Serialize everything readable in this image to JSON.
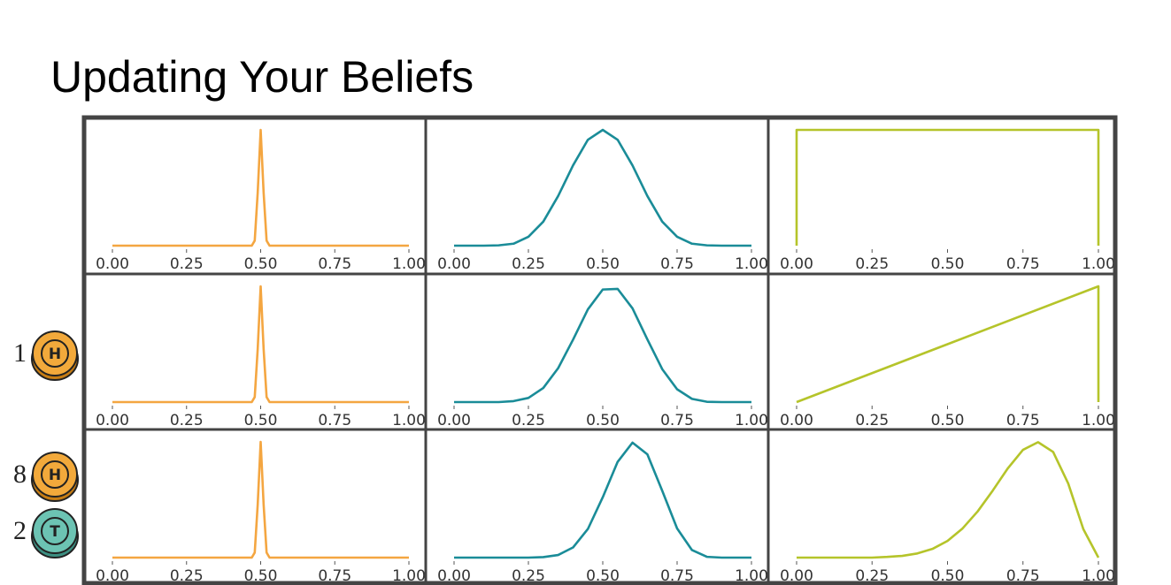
{
  "title": "Updating Your Beliefs",
  "coins": [
    {
      "count": 1,
      "face": "H"
    },
    {
      "count": 8,
      "face": "H"
    },
    {
      "count": 2,
      "face": "T"
    }
  ],
  "chart_data": [
    {
      "type": "line",
      "color": "#f4a641",
      "x": [
        0,
        0.25,
        0.45,
        0.47,
        0.48,
        0.49,
        0.5,
        0.51,
        0.52,
        0.53,
        0.55,
        0.75,
        1
      ],
      "values": [
        0,
        0,
        0,
        0,
        2.2,
        23.1,
        50.5,
        23.1,
        2.2,
        0,
        0,
        0,
        0
      ],
      "xlim": [
        0,
        1
      ],
      "ylim": [
        0,
        50.5
      ],
      "xticks": [
        {
          "value": 0,
          "label": "0.00"
        },
        {
          "value": 0.25,
          "label": "0.25"
        },
        {
          "value": 0.5,
          "label": "0.50"
        },
        {
          "value": 0.75,
          "label": "0.75"
        },
        {
          "value": 1,
          "label": "1.00"
        }
      ]
    },
    {
      "type": "line",
      "color": "#1a8c98",
      "x": [
        0,
        0.05,
        0.1,
        0.15,
        0.2,
        0.25,
        0.3,
        0.35,
        0.4,
        0.45,
        0.5,
        0.55,
        0.6,
        0.65,
        0.7,
        0.75,
        0.8,
        0.85,
        0.9,
        0.95,
        1
      ],
      "values": [
        0,
        0,
        0,
        0.01,
        0.06,
        0.27,
        0.73,
        1.51,
        2.44,
        3.22,
        3.52,
        3.22,
        2.44,
        1.51,
        0.73,
        0.27,
        0.06,
        0.01,
        0,
        0,
        0
      ],
      "xlim": [
        0,
        1
      ],
      "ylim": [
        0,
        3.52
      ],
      "xticks": [
        {
          "value": 0,
          "label": "0.00"
        },
        {
          "value": 0.25,
          "label": "0.25"
        },
        {
          "value": 0.5,
          "label": "0.50"
        },
        {
          "value": 0.75,
          "label": "0.75"
        },
        {
          "value": 1,
          "label": "1.00"
        }
      ]
    },
    {
      "type": "line",
      "color": "#b5c42a",
      "x": [
        0,
        0,
        1,
        1
      ],
      "values": [
        0,
        1,
        1,
        0
      ],
      "xlim": [
        0,
        1
      ],
      "ylim": [
        0,
        1
      ],
      "xticks": [
        {
          "value": 0,
          "label": "0.00"
        },
        {
          "value": 0.25,
          "label": "0.25"
        },
        {
          "value": 0.5,
          "label": "0.50"
        },
        {
          "value": 0.75,
          "label": "0.75"
        },
        {
          "value": 1,
          "label": "1.00"
        }
      ]
    },
    {
      "type": "line",
      "color": "#f4a641",
      "x": [
        0,
        0.25,
        0.45,
        0.47,
        0.48,
        0.49,
        0.5,
        0.51,
        0.52,
        0.53,
        0.55,
        0.75,
        1
      ],
      "values": [
        0,
        0,
        0,
        0,
        2.2,
        23.1,
        50.5,
        23.1,
        2.2,
        0,
        0,
        0,
        0
      ],
      "xlim": [
        0,
        1
      ],
      "ylim": [
        0,
        50.5
      ],
      "xticks": [
        {
          "value": 0,
          "label": "0.00"
        },
        {
          "value": 0.25,
          "label": "0.25"
        },
        {
          "value": 0.5,
          "label": "0.50"
        },
        {
          "value": 0.75,
          "label": "0.75"
        },
        {
          "value": 1,
          "label": "1.00"
        }
      ]
    },
    {
      "type": "line",
      "color": "#1a8c98",
      "x": [
        0,
        0.05,
        0.1,
        0.15,
        0.2,
        0.25,
        0.3,
        0.35,
        0.4,
        0.45,
        0.5,
        0.55,
        0.6,
        0.65,
        0.7,
        0.75,
        0.8,
        0.85,
        0.9,
        0.95,
        1
      ],
      "values": [
        0,
        0,
        0,
        0,
        0.03,
        0.13,
        0.44,
        1.06,
        1.95,
        2.9,
        3.52,
        3.54,
        2.93,
        1.96,
        1.03,
        0.4,
        0.1,
        0.01,
        0,
        0,
        0
      ],
      "xlim": [
        0,
        1
      ],
      "ylim": [
        0,
        3.62
      ],
      "xticks": [
        {
          "value": 0,
          "label": "0.00"
        },
        {
          "value": 0.25,
          "label": "0.25"
        },
        {
          "value": 0.5,
          "label": "0.50"
        },
        {
          "value": 0.75,
          "label": "0.75"
        },
        {
          "value": 1,
          "label": "1.00"
        }
      ]
    },
    {
      "type": "line",
      "color": "#b5c42a",
      "x": [
        0,
        0.5,
        1,
        1
      ],
      "values": [
        0,
        1,
        2,
        0
      ],
      "xlim": [
        0,
        1
      ],
      "ylim": [
        0,
        2
      ],
      "xticks": [
        {
          "value": 0,
          "label": "0.00"
        },
        {
          "value": 0.25,
          "label": "0.25"
        },
        {
          "value": 0.5,
          "label": "0.50"
        },
        {
          "value": 0.75,
          "label": "0.75"
        },
        {
          "value": 1,
          "label": "1.00"
        }
      ]
    },
    {
      "type": "line",
      "color": "#f4a641",
      "x": [
        0,
        0.25,
        0.45,
        0.47,
        0.48,
        0.49,
        0.5,
        0.51,
        0.52,
        0.53,
        0.55,
        0.75,
        1
      ],
      "values": [
        0,
        0,
        0,
        0,
        2.2,
        23.1,
        50.5,
        23.1,
        2.2,
        0,
        0,
        0,
        0
      ],
      "xlim": [
        0,
        1
      ],
      "ylim": [
        0,
        50.5
      ],
      "xticks": [
        {
          "value": 0,
          "label": "0.00"
        },
        {
          "value": 0.25,
          "label": "0.25"
        },
        {
          "value": 0.5,
          "label": "0.50"
        },
        {
          "value": 0.75,
          "label": "0.75"
        },
        {
          "value": 1,
          "label": "1.00"
        }
      ]
    },
    {
      "type": "line",
      "color": "#1a8c98",
      "x": [
        0,
        0.05,
        0.1,
        0.15,
        0.2,
        0.25,
        0.3,
        0.35,
        0.4,
        0.45,
        0.5,
        0.55,
        0.6,
        0.65,
        0.7,
        0.75,
        0.8,
        0.85,
        0.9,
        0.95,
        1
      ],
      "values": [
        0,
        0,
        0,
        0,
        0,
        0,
        0.02,
        0.1,
        0.39,
        1.1,
        2.32,
        3.68,
        4.42,
        3.97,
        2.57,
        1.12,
        0.29,
        0.03,
        0,
        0,
        0
      ],
      "xlim": [
        0,
        1
      ],
      "ylim": [
        0,
        4.45
      ],
      "xticks": [
        {
          "value": 0,
          "label": "0.00"
        },
        {
          "value": 0.25,
          "label": "0.25"
        },
        {
          "value": 0.5,
          "label": "0.50"
        },
        {
          "value": 0.75,
          "label": "0.75"
        },
        {
          "value": 1,
          "label": "1.00"
        }
      ]
    },
    {
      "type": "line",
      "color": "#b5c42a",
      "x": [
        0,
        0.05,
        0.1,
        0.15,
        0.2,
        0.25,
        0.3,
        0.35,
        0.4,
        0.45,
        0.5,
        0.55,
        0.6,
        0.65,
        0.7,
        0.75,
        0.8,
        0.85,
        0.9,
        0.95,
        1
      ],
      "values": [
        0,
        0,
        0,
        0,
        0,
        0,
        0.02,
        0.05,
        0.12,
        0.25,
        0.48,
        0.84,
        1.33,
        1.93,
        2.57,
        3.1,
        3.32,
        3.04,
        2.13,
        0.82,
        0
      ],
      "xlim": [
        0,
        1
      ],
      "ylim": [
        0,
        3.33
      ],
      "xticks": [
        {
          "value": 0,
          "label": "0.00"
        },
        {
          "value": 0.25,
          "label": "0.25"
        },
        {
          "value": 0.5,
          "label": "0.50"
        },
        {
          "value": 0.75,
          "label": "0.75"
        },
        {
          "value": 1,
          "label": "1.00"
        }
      ]
    }
  ]
}
